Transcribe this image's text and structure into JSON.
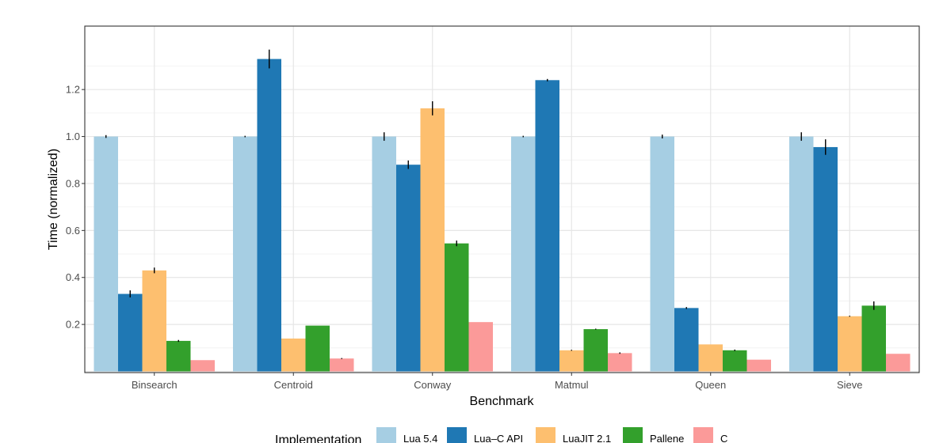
{
  "chart_data": {
    "type": "bar",
    "xlabel": "Benchmark",
    "ylabel": "Time (normalized)",
    "categories": [
      "Binsearch",
      "Centroid",
      "Conway",
      "Matmul",
      "Queen",
      "Sieve"
    ],
    "y_ticks": [
      "0.2",
      "0.4",
      "0.6",
      "0.8",
      "1.0",
      "1.2"
    ],
    "ylim": [
      -0.005,
      1.47
    ],
    "grid": true,
    "legend": {
      "title": "Implementation",
      "position": "bottom"
    },
    "series": [
      {
        "name": "Lua 5.4",
        "color": "#a6cee3",
        "values": [
          1.0,
          1.0,
          1.0,
          1.0,
          1.0,
          1.0
        ],
        "errors": [
          0.006,
          0.003,
          0.018,
          0.003,
          0.008,
          0.018
        ]
      },
      {
        "name": "Lua–C API",
        "color": "#1f78b4",
        "values": [
          0.33,
          1.33,
          0.88,
          1.24,
          0.27,
          0.955
        ],
        "errors": [
          0.015,
          0.04,
          0.018,
          0.005,
          0.004,
          0.033
        ]
      },
      {
        "name": "LuaJIT 2.1",
        "color": "#fdbf6f",
        "values": [
          0.43,
          0.14,
          1.12,
          0.09,
          0.115,
          0.235
        ],
        "errors": [
          0.012,
          0.0,
          0.03,
          0.002,
          0.0,
          0.002
        ]
      },
      {
        "name": "Pallene",
        "color": "#33a02c",
        "values": [
          0.13,
          0.195,
          0.545,
          0.18,
          0.09,
          0.28
        ],
        "errors": [
          0.004,
          0.0,
          0.012,
          0.002,
          0.003,
          0.018
        ]
      },
      {
        "name": "C",
        "color": "#fb9a99",
        "values": [
          0.048,
          0.055,
          0.21,
          0.078,
          0.05,
          0.075
        ],
        "errors": [
          0.0,
          0.002,
          0.0,
          0.003,
          0.0,
          0.0
        ]
      }
    ]
  }
}
